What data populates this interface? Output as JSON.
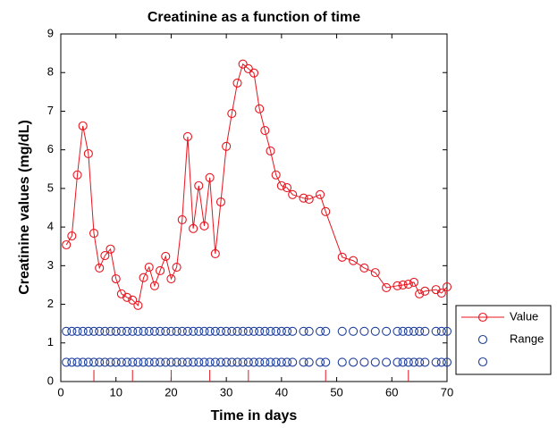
{
  "chart_data": {
    "type": "line",
    "title": "Creatinine as a function of time",
    "x_label": "Time in days",
    "y_label": "Creatinine values (mg/dL)",
    "x": [
      1,
      2,
      3,
      4,
      5,
      6,
      7,
      8,
      9,
      10,
      11,
      12,
      13,
      14,
      15,
      16,
      17,
      18,
      19,
      20,
      21,
      22,
      23,
      24,
      25,
      26,
      27,
      28,
      29,
      30,
      31,
      32,
      33,
      34,
      35,
      36,
      37,
      38,
      39,
      40,
      41,
      42,
      44,
      45,
      47,
      48,
      51,
      53,
      55,
      57,
      59,
      61,
      62,
      63,
      64,
      65,
      66,
      68,
      69,
      70
    ],
    "series": [
      {
        "name": "Value",
        "color": "#e8141e",
        "marker": "circle",
        "line": true,
        "values": [
          3.54,
          3.77,
          5.35,
          6.62,
          5.9,
          3.84,
          2.94,
          3.26,
          3.43,
          2.66,
          2.27,
          2.18,
          2.11,
          1.97,
          2.69,
          2.96,
          2.48,
          2.87,
          3.24,
          2.66,
          2.96,
          4.19,
          6.34,
          3.96,
          5.07,
          4.03,
          5.28,
          3.31,
          4.65,
          6.09,
          6.94,
          7.73,
          8.22,
          8.1,
          7.99,
          7.06,
          6.5,
          5.97,
          5.35,
          5.07,
          5.02,
          4.84,
          4.75,
          4.72,
          4.84,
          4.4,
          3.22,
          3.13,
          2.94,
          2.82,
          2.43,
          2.48,
          2.5,
          2.52,
          2.57,
          2.27,
          2.34,
          2.38,
          2.29,
          2.45
        ]
      },
      {
        "name": "Range",
        "color": "#1f3f9a",
        "marker": "circle",
        "line": false,
        "values": [
          1.3,
          1.3,
          1.3,
          1.3,
          1.3,
          1.3,
          1.3,
          1.3,
          1.3,
          1.3,
          1.3,
          1.3,
          1.3,
          1.3,
          1.3,
          1.3,
          1.3,
          1.3,
          1.3,
          1.3,
          1.3,
          1.3,
          1.3,
          1.3,
          1.3,
          1.3,
          1.3,
          1.3,
          1.3,
          1.3,
          1.3,
          1.3,
          1.3,
          1.3,
          1.3,
          1.3,
          1.3,
          1.3,
          1.3,
          1.3,
          1.3,
          1.3,
          1.3,
          1.3,
          1.3,
          1.3,
          1.3,
          1.3,
          1.3,
          1.3,
          1.3,
          1.3,
          1.3,
          1.3,
          1.3,
          1.3,
          1.3,
          1.3,
          1.3,
          1.3
        ]
      },
      {
        "color": "#1f3f9a",
        "marker": "circle",
        "line": false,
        "values": [
          0.5,
          0.5,
          0.5,
          0.5,
          0.5,
          0.5,
          0.5,
          0.5,
          0.5,
          0.5,
          0.5,
          0.5,
          0.5,
          0.5,
          0.5,
          0.5,
          0.5,
          0.5,
          0.5,
          0.5,
          0.5,
          0.5,
          0.5,
          0.5,
          0.5,
          0.5,
          0.5,
          0.5,
          0.5,
          0.5,
          0.5,
          0.5,
          0.5,
          0.5,
          0.5,
          0.5,
          0.5,
          0.5,
          0.5,
          0.5,
          0.5,
          0.5,
          0.5,
          0.5,
          0.5,
          0.5,
          0.5,
          0.5,
          0.5,
          0.5,
          0.5,
          0.5,
          0.5,
          0.5,
          0.5,
          0.5,
          0.5,
          0.5,
          0.5,
          0.5
        ]
      }
    ],
    "event_markers": [
      6,
      13,
      20,
      27,
      34,
      48,
      63
    ],
    "event_color": "#e8141e",
    "xlim": [
      0,
      70
    ],
    "xticks": [
      0,
      10,
      20,
      30,
      40,
      50,
      60,
      70
    ],
    "ylim": [
      0,
      9
    ],
    "yticks": [
      0,
      1,
      2,
      3,
      4,
      5,
      6,
      7,
      8,
      9
    ],
    "grid": false,
    "legend": "right"
  }
}
